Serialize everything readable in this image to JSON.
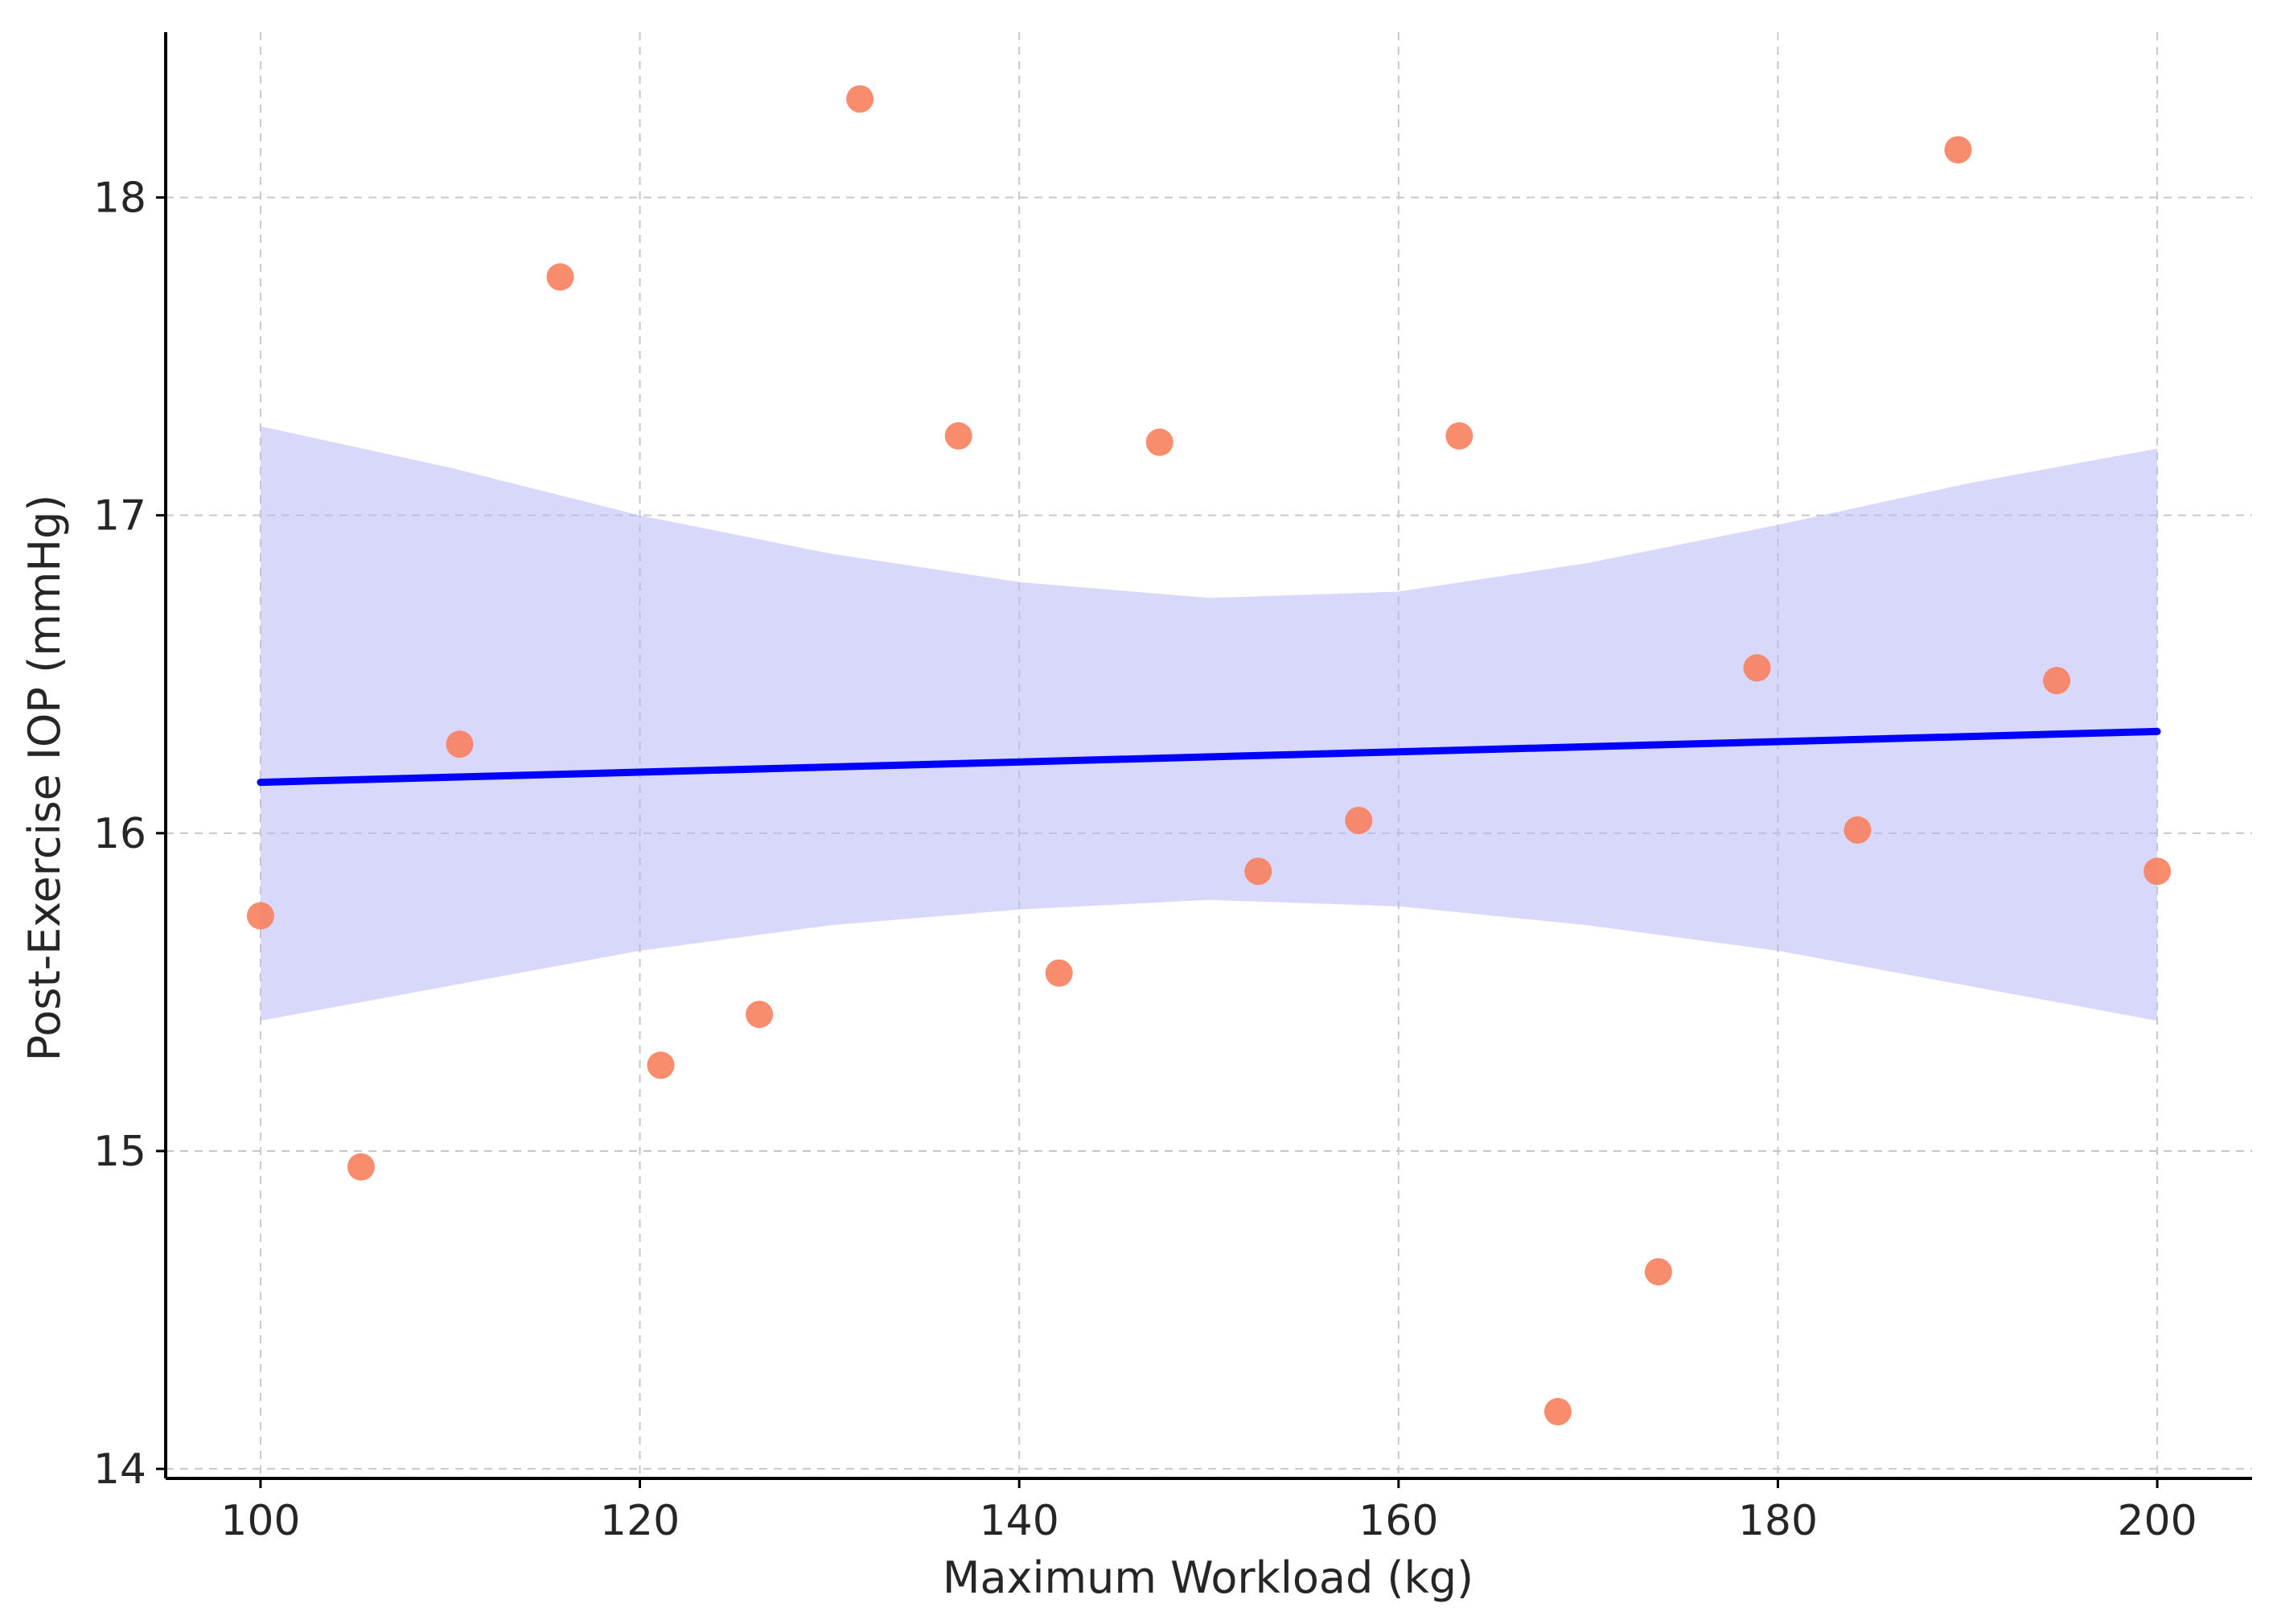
{
  "chart_data": {
    "type": "scatter",
    "title": "",
    "xlabel": "Maximum Workload (kg)",
    "ylabel": "Post-Exercise IOP (mmHg)",
    "xlim": [
      95,
      205
    ],
    "ylim": [
      13.97,
      18.52
    ],
    "x_ticks": [
      100,
      120,
      140,
      160,
      180,
      200
    ],
    "y_ticks": [
      14,
      15,
      16,
      17,
      18
    ],
    "grid": true,
    "legend": "none",
    "points": {
      "x": [
        100.0,
        105.3,
        110.5,
        115.8,
        121.1,
        126.3,
        131.6,
        136.8,
        142.1,
        147.4,
        152.6,
        157.9,
        163.2,
        168.4,
        173.7,
        178.9,
        184.2,
        189.5,
        194.7,
        200.0
      ],
      "y": [
        15.74,
        14.95,
        16.28,
        17.75,
        15.27,
        15.43,
        18.31,
        17.25,
        15.56,
        17.23,
        15.88,
        16.04,
        17.25,
        14.18,
        14.62,
        16.52,
        16.01,
        18.15,
        16.48,
        15.88
      ],
      "color": "#fa7f5e"
    },
    "regression_line": {
      "x": [
        100,
        200
      ],
      "y": [
        16.16,
        16.32
      ],
      "color": "#0000ff"
    },
    "confidence_band": {
      "color": "#b8b8f8",
      "x": [
        100,
        110,
        120,
        130,
        140,
        150,
        160,
        170,
        180,
        190,
        200
      ],
      "upper": [
        17.28,
        17.15,
        17.0,
        16.88,
        16.79,
        16.74,
        16.76,
        16.85,
        16.97,
        17.1,
        17.21
      ],
      "lower": [
        15.41,
        15.52,
        15.63,
        15.71,
        15.76,
        15.79,
        15.77,
        15.71,
        15.63,
        15.52,
        15.41
      ]
    }
  }
}
